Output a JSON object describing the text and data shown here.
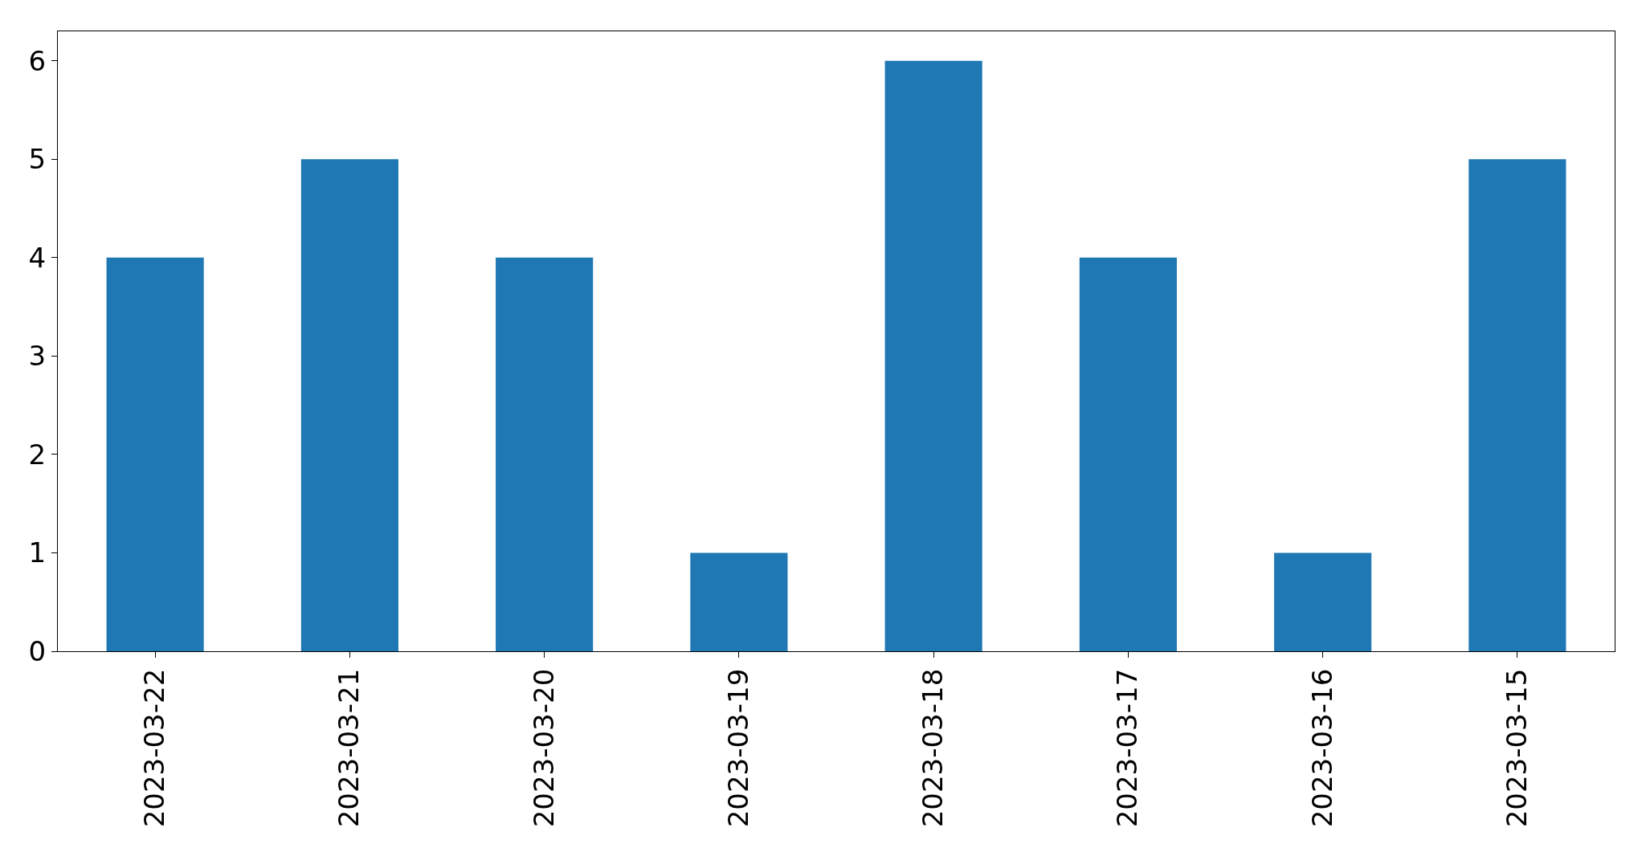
{
  "chart_data": {
    "type": "bar",
    "categories": [
      "2023-03-22",
      "2023-03-21",
      "2023-03-20",
      "2023-03-19",
      "2023-03-18",
      "2023-03-17",
      "2023-03-16",
      "2023-03-15"
    ],
    "values": [
      4,
      5,
      4,
      1,
      6,
      4,
      1,
      5
    ],
    "color": "#1f77b4",
    "ylim": [
      0,
      6.3
    ],
    "yticks": [
      0,
      1,
      2,
      3,
      4,
      5,
      6
    ]
  }
}
